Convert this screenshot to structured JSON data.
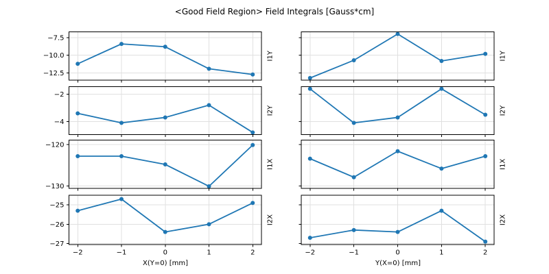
{
  "figure": {
    "background": "#ffffff",
    "text_color": "#000000"
  },
  "chart_data": {
    "type": "line",
    "title": "<Good Field Region> Field Integrals [Gauss*cm]",
    "grid": true,
    "grid_color": "#e0e0e0",
    "spine_color": "#000000",
    "line_color": "#1f77b4",
    "marker": "o",
    "legend": "none",
    "x": [
      -2,
      -1,
      0,
      1,
      2
    ],
    "xlim": [
      -2.2,
      2.2
    ],
    "xticks": [
      -2,
      -1,
      0,
      1,
      2
    ],
    "xtick_labels": [
      "−2",
      "−1",
      "0",
      "1",
      "2"
    ],
    "columns": [
      {
        "xlabel": "X(Y=0) [mm]"
      },
      {
        "xlabel": "Y(X=0) [mm]"
      }
    ],
    "rows": [
      {
        "ylabel": "I1Y",
        "ylim": [
          -13.5,
          -6.7
        ],
        "yticks": [
          -7.5,
          -10.0,
          -12.5
        ],
        "ytick_labels": [
          "−7.5",
          "−10.0",
          "−12.5"
        ]
      },
      {
        "ylabel": "I2Y",
        "ylim": [
          -4.96,
          -1.44
        ],
        "yticks": [
          -2,
          -4
        ],
        "ytick_labels": [
          "−2",
          "−4"
        ]
      },
      {
        "ylabel": "I1X",
        "ylim": [
          -130.6,
          -118.9
        ],
        "yticks": [
          -120,
          -130
        ],
        "ytick_labels": [
          "−120",
          "−130"
        ]
      },
      {
        "ylabel": "I2X",
        "ylim": [
          -27.05,
          -24.5
        ],
        "yticks": [
          -25,
          -26,
          -27
        ],
        "ytick_labels": [
          "−25",
          "−26",
          "−27"
        ]
      }
    ],
    "series": [
      {
        "name": "I1Y vs X(Y=0)",
        "row": 0,
        "col": 0,
        "values": [
          -11.2,
          -8.4,
          -8.8,
          -11.9,
          -12.7
        ]
      },
      {
        "name": "I1Y vs Y(X=0)",
        "row": 0,
        "col": 1,
        "values": [
          -13.2,
          -10.7,
          -7.0,
          -10.8,
          -9.8
        ]
      },
      {
        "name": "I2Y vs X(Y=0)",
        "row": 1,
        "col": 0,
        "values": [
          -3.4,
          -4.1,
          -3.7,
          -2.8,
          -4.8
        ]
      },
      {
        "name": "I2Y vs Y(X=0)",
        "row": 1,
        "col": 1,
        "values": [
          -1.6,
          -4.1,
          -3.7,
          -1.6,
          -3.5
        ]
      },
      {
        "name": "I1X vs X(Y=0)",
        "row": 2,
        "col": 0,
        "values": [
          -122.8,
          -122.8,
          -124.8,
          -130.1,
          -120.1
        ]
      },
      {
        "name": "I1X vs Y(X=0)",
        "row": 2,
        "col": 1,
        "values": [
          -123.4,
          -127.9,
          -121.6,
          -125.8,
          -122.8
        ]
      },
      {
        "name": "I2X vs X(Y=0)",
        "row": 3,
        "col": 0,
        "values": [
          -25.3,
          -24.7,
          -26.4,
          -26.0,
          -24.9
        ]
      },
      {
        "name": "I2X vs Y(X=0)",
        "row": 3,
        "col": 1,
        "values": [
          -26.7,
          -26.3,
          -26.4,
          -25.3,
          -26.9
        ]
      }
    ]
  }
}
